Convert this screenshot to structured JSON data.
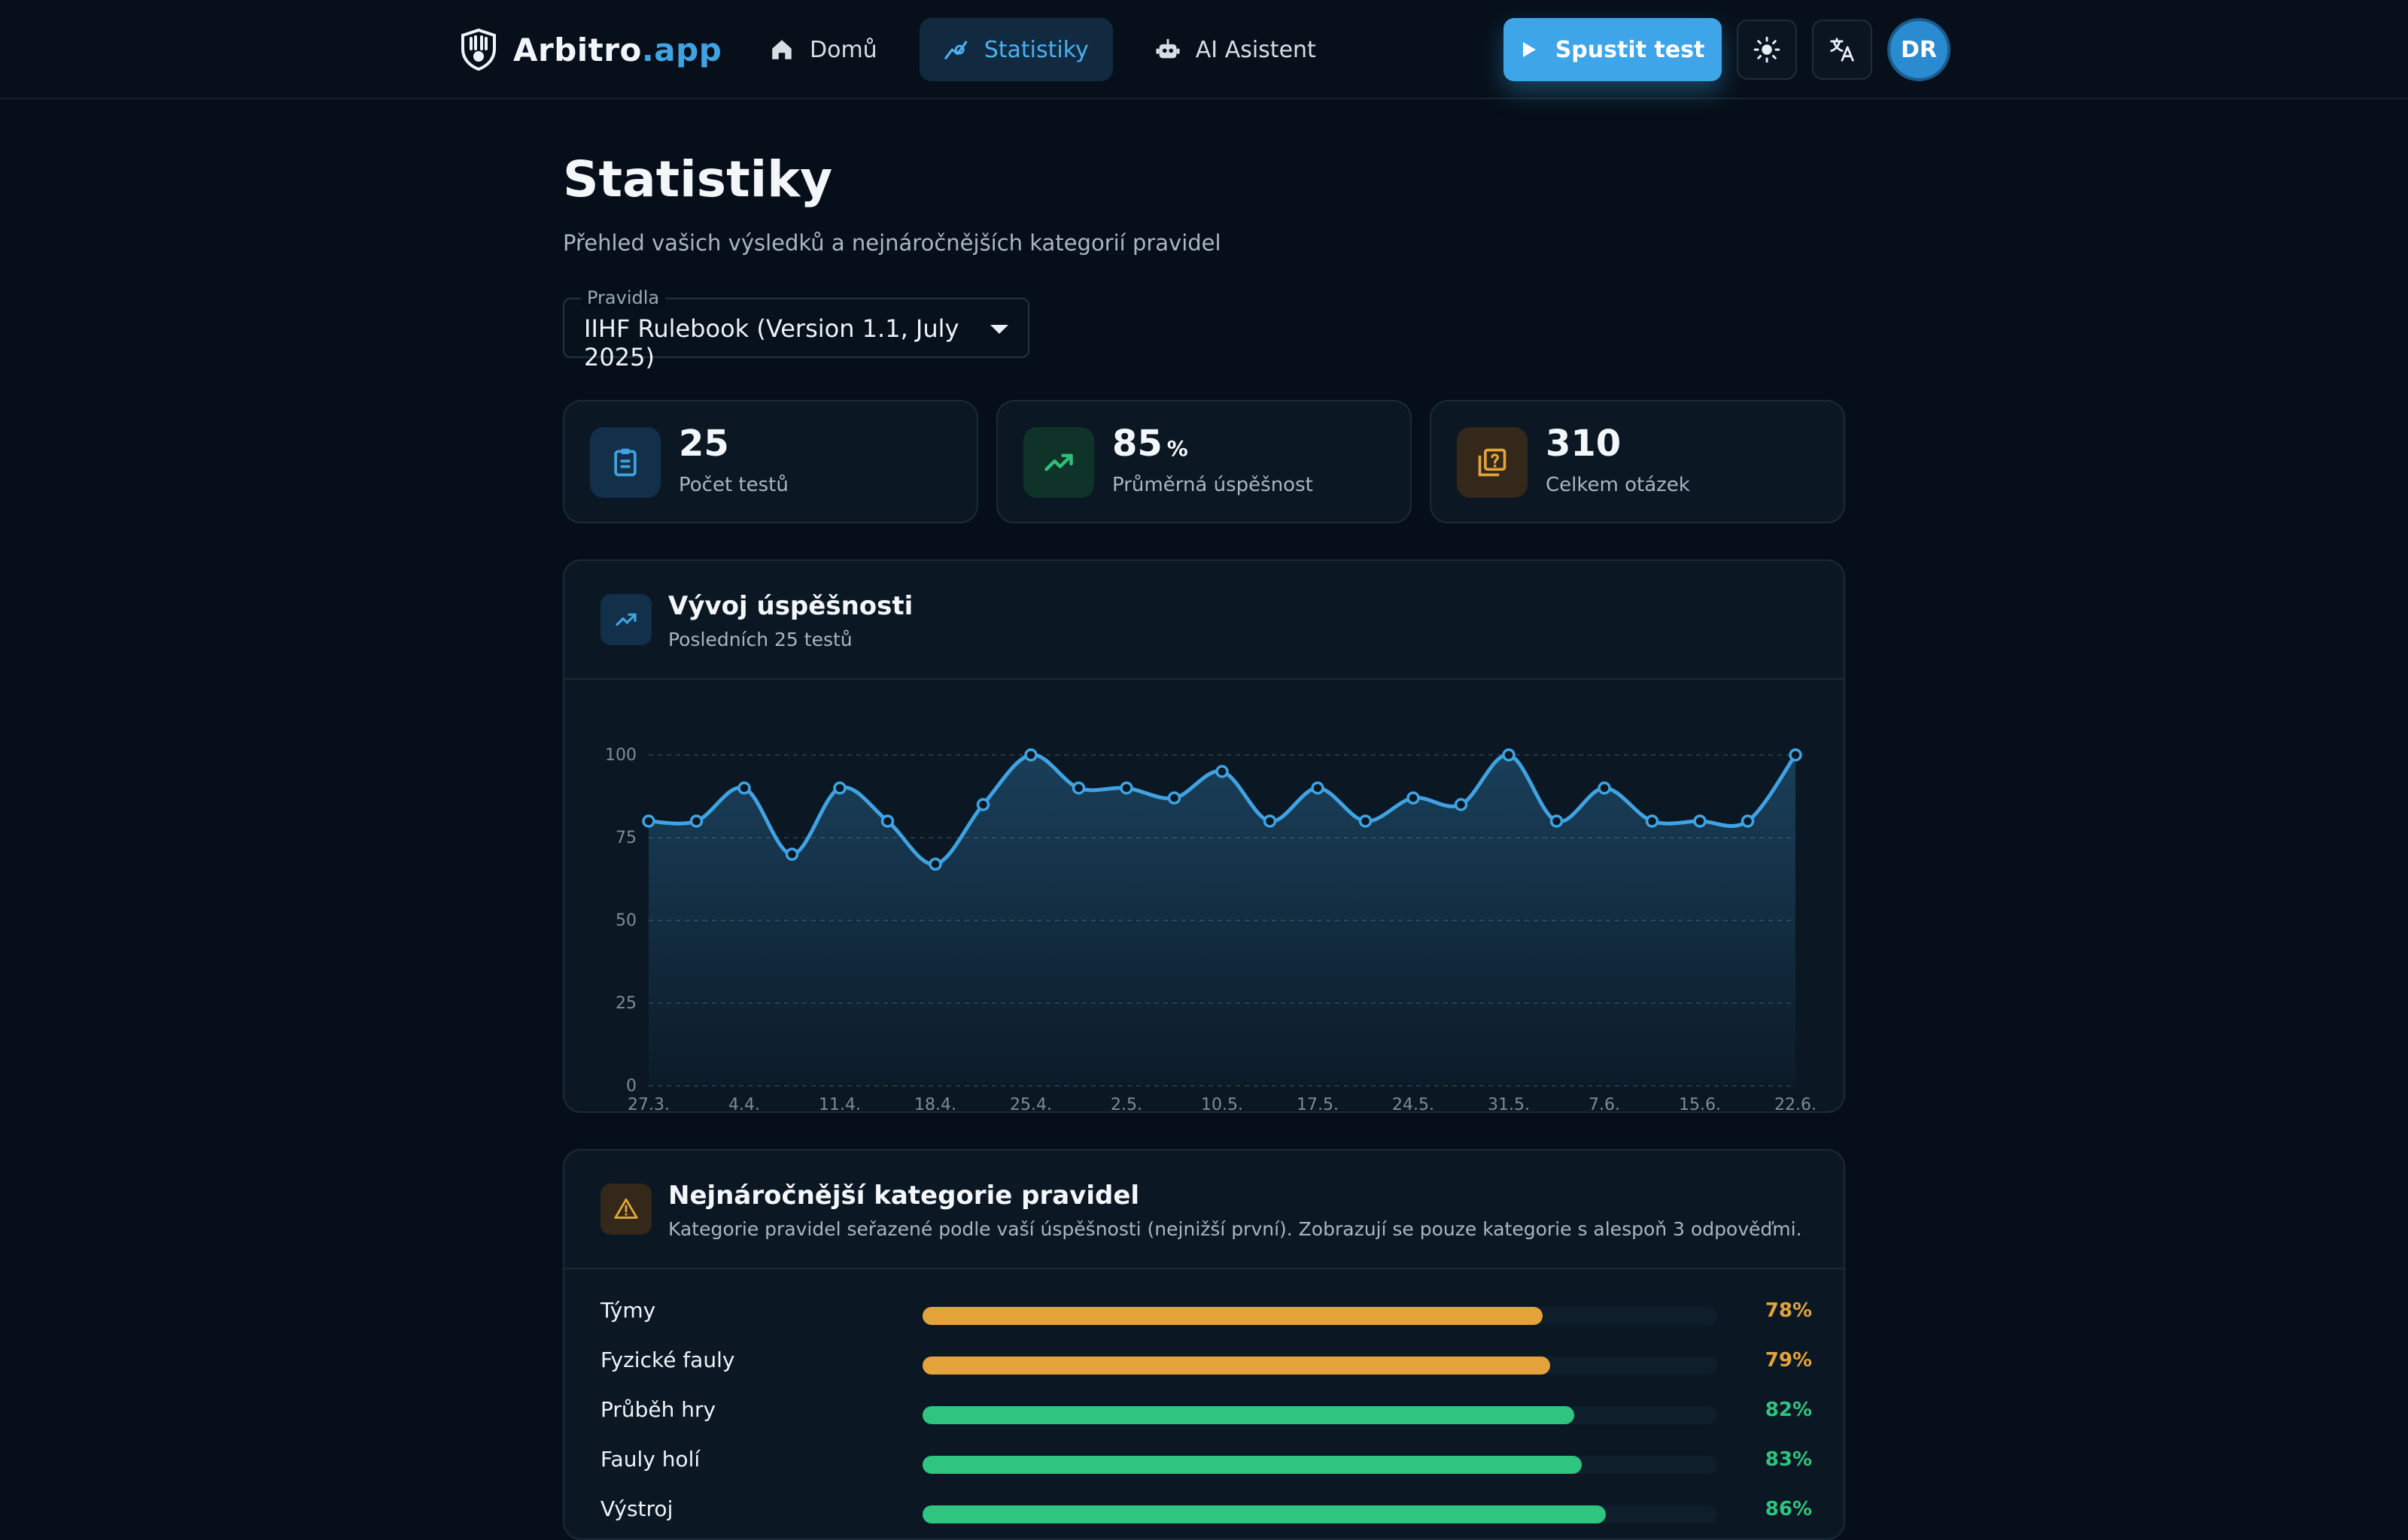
{
  "header": {
    "brand_main": "Arbitro",
    "brand_accent": ".app",
    "nav": [
      {
        "label": "Domů",
        "icon": "home-icon",
        "active": false
      },
      {
        "label": "Statistiky",
        "icon": "chart-icon",
        "active": true
      },
      {
        "label": "AI Asistent",
        "icon": "robot-icon",
        "active": false
      }
    ],
    "start_test_label": "Spustit test",
    "avatar_initials": "DR"
  },
  "page": {
    "title": "Statistiky",
    "subtitle": "Přehled vašich výsledků a nejnáročnějších kategorií pravidel"
  },
  "rules_select": {
    "label": "Pravidla",
    "value": "IIHF Rulebook (Version 1.1, July 2025)"
  },
  "stats": [
    {
      "value": "25",
      "unit": "",
      "label": "Počet testů",
      "icon": "clipboard-icon",
      "color": "#3fa3e3"
    },
    {
      "value": "85",
      "unit": "%",
      "label": "Průměrná úspěšnost",
      "icon": "trending-up-icon",
      "color": "#2fbf7a"
    },
    {
      "value": "310",
      "unit": "",
      "label": "Celkem otázek",
      "icon": "question-library-icon",
      "color": "#e3a33a"
    }
  ],
  "trend_card": {
    "title": "Vývoj úspěšnosti",
    "subtitle": "Posledních 25 testů"
  },
  "chart_data": {
    "type": "line",
    "ylim": [
      0,
      100
    ],
    "yticks": [
      0,
      25,
      50,
      75,
      100
    ],
    "xtick_labels": [
      "27.3.",
      "4.4.",
      "11.4.",
      "18.4.",
      "25.4.",
      "2.5.",
      "10.5.",
      "17.5.",
      "24.5.",
      "31.5.",
      "7.6.",
      "15.6.",
      "22.6."
    ],
    "values": [
      80,
      80,
      90,
      70,
      90,
      80,
      67,
      85,
      100,
      90,
      90,
      87,
      95,
      80,
      90,
      80,
      87,
      85,
      100,
      80,
      90,
      80,
      80,
      80,
      100
    ],
    "color": "#3fa3e3",
    "grid": true
  },
  "categories_card": {
    "title": "Nejnáročnější kategorie pravidel",
    "subtitle": "Kategorie pravidel seřazené podle vaší úspěšnosti (nejnižší první). Zobrazují se pouze kategorie s alespoň 3 odpověďmi.",
    "items": [
      {
        "name": "Týmy",
        "percent": 78,
        "label": "78%",
        "color": "#e3a33a"
      },
      {
        "name": "Fyzické fauly",
        "percent": 79,
        "label": "79%",
        "color": "#e3a33a"
      },
      {
        "name": "Průběh hry",
        "percent": 82,
        "label": "82%",
        "color": "#2fc47f"
      },
      {
        "name": "Fauly holí",
        "percent": 83,
        "label": "83%",
        "color": "#2fc47f"
      },
      {
        "name": "Výstroj",
        "percent": 86,
        "label": "86%",
        "color": "#2fc47f"
      }
    ]
  }
}
